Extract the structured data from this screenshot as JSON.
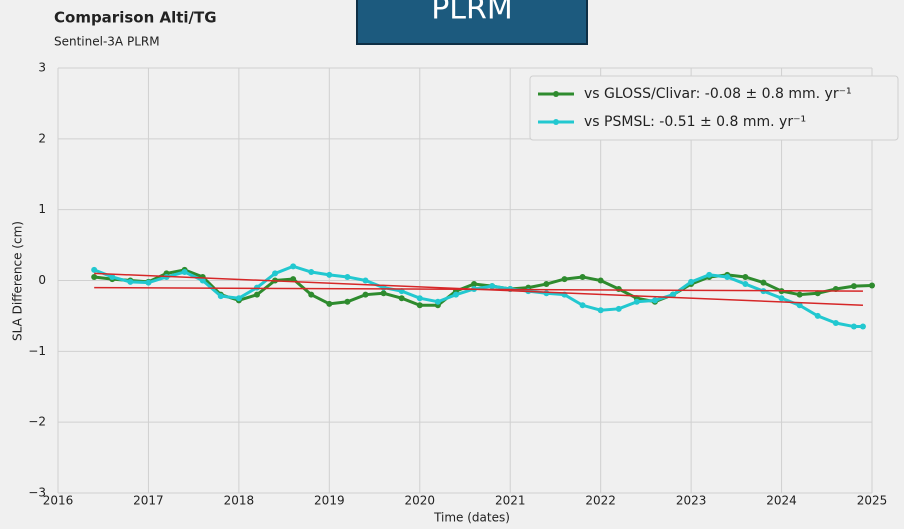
{
  "chart_data": {
    "type": "line",
    "title": "Comparison Alti/TG",
    "subtitle": "Sentinel-3A PLRM",
    "badge": "PLRM",
    "xlabel": "Time (dates)",
    "ylabel": "SLA Difference (cm)",
    "xlim": [
      2016,
      2025
    ],
    "xticks": [
      2016,
      2017,
      2018,
      2019,
      2020,
      2021,
      2022,
      2023,
      2024,
      2025
    ],
    "ylim": [
      -3,
      3
    ],
    "yticks": [
      {
        "value": -3,
        "label": "−3"
      },
      {
        "value": -2,
        "label": "−2"
      },
      {
        "value": -1,
        "label": "−1"
      },
      0,
      1,
      2,
      3
    ],
    "grid": true,
    "legend": "upper right",
    "series": [
      {
        "name": "vs GLOSS/Clivar: -0.08 ± 0.8 mm. yr⁻¹",
        "color": "#2e8b2e",
        "markers": true,
        "x": [
          2016.4,
          2016.6,
          2016.8,
          2017.0,
          2017.2,
          2017.4,
          2017.6,
          2017.8,
          2018.0,
          2018.2,
          2018.4,
          2018.6,
          2018.8,
          2019.0,
          2019.2,
          2019.4,
          2019.6,
          2019.8,
          2020.0,
          2020.2,
          2020.4,
          2020.6,
          2020.8,
          2021.0,
          2021.2,
          2021.4,
          2021.6,
          2021.8,
          2022.0,
          2022.2,
          2022.4,
          2022.6,
          2022.8,
          2023.0,
          2023.2,
          2023.4,
          2023.6,
          2023.8,
          2024.0,
          2024.2,
          2024.4,
          2024.6,
          2024.8,
          2025.0
        ],
        "values": [
          0.05,
          0.02,
          0.0,
          -0.02,
          0.1,
          0.15,
          0.05,
          -0.2,
          -0.28,
          -0.2,
          0.0,
          0.02,
          -0.2,
          -0.33,
          -0.3,
          -0.2,
          -0.18,
          -0.25,
          -0.35,
          -0.35,
          -0.15,
          -0.05,
          -0.08,
          -0.12,
          -0.1,
          -0.05,
          0.02,
          0.05,
          0.0,
          -0.12,
          -0.25,
          -0.3,
          -0.2,
          -0.05,
          0.05,
          0.08,
          0.05,
          -0.03,
          -0.15,
          -0.2,
          -0.18,
          -0.12,
          -0.08,
          -0.07
        ]
      },
      {
        "name": "vs PSMSL: -0.51 ± 0.8 mm. yr⁻¹",
        "color": "#22c8d0",
        "markers": true,
        "x": [
          2016.4,
          2016.6,
          2016.8,
          2017.0,
          2017.2,
          2017.4,
          2017.6,
          2017.8,
          2018.0,
          2018.2,
          2018.4,
          2018.6,
          2018.8,
          2019.0,
          2019.2,
          2019.4,
          2019.6,
          2019.8,
          2020.0,
          2020.2,
          2020.4,
          2020.6,
          2020.8,
          2021.0,
          2021.2,
          2021.4,
          2021.6,
          2021.8,
          2022.0,
          2022.2,
          2022.4,
          2022.6,
          2022.8,
          2023.0,
          2023.2,
          2023.4,
          2023.6,
          2023.8,
          2024.0,
          2024.2,
          2024.4,
          2024.6,
          2024.8,
          2024.9
        ],
        "values": [
          0.15,
          0.05,
          -0.02,
          -0.03,
          0.05,
          0.12,
          0.0,
          -0.22,
          -0.25,
          -0.1,
          0.1,
          0.2,
          0.12,
          0.08,
          0.05,
          0.0,
          -0.1,
          -0.15,
          -0.25,
          -0.3,
          -0.2,
          -0.12,
          -0.08,
          -0.12,
          -0.15,
          -0.18,
          -0.2,
          -0.35,
          -0.42,
          -0.4,
          -0.3,
          -0.28,
          -0.2,
          -0.02,
          0.08,
          0.05,
          -0.05,
          -0.15,
          -0.25,
          -0.35,
          -0.5,
          -0.6,
          -0.65,
          -0.65
        ]
      },
      {
        "color": "#d62728",
        "markers": false,
        "x": [
          2016.4,
          2024.9
        ],
        "values": [
          0.1,
          -0.35
        ]
      },
      {
        "color": "#d62728",
        "markers": false,
        "x": [
          2016.4,
          2024.9
        ],
        "values": [
          -0.1,
          -0.15
        ]
      }
    ]
  }
}
